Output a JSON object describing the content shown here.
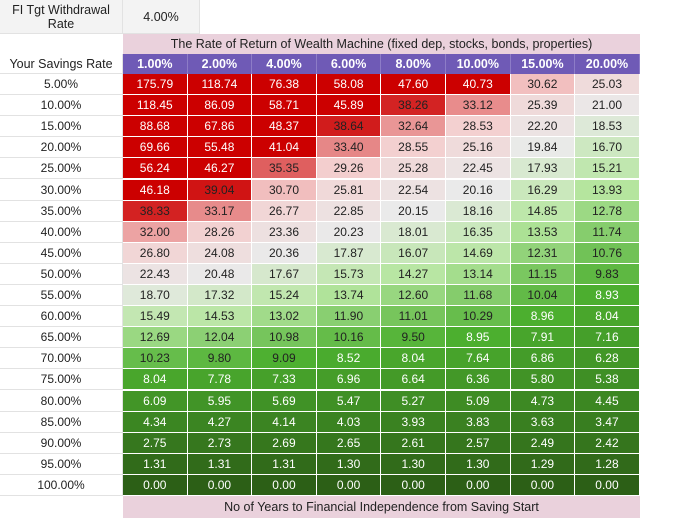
{
  "sheet": {
    "fi_label": "FI Tgt Withdrawal\nRate",
    "fi_value": "4.00%",
    "title": "The Rate of Return of Wealth Machine (fixed dep, stocks, bonds, properties)",
    "corner_label": "Your Savings Rate",
    "footer": "No of Years to Financial Independence from Saving Start",
    "columns": [
      "1.00%",
      "2.00%",
      "4.00%",
      "6.00%",
      "8.00%",
      "10.00%",
      "15.00%",
      "20.00%"
    ],
    "rows": [
      {
        "label": "5.00%",
        "values": [
          "175.79",
          "118.74",
          "76.38",
          "58.08",
          "47.60",
          "40.73",
          "30.62",
          "25.03"
        ]
      },
      {
        "label": "10.00%",
        "values": [
          "118.45",
          "86.09",
          "58.71",
          "45.89",
          "38.26",
          "33.12",
          "25.39",
          "21.00"
        ]
      },
      {
        "label": "15.00%",
        "values": [
          "88.68",
          "67.86",
          "48.37",
          "38.64",
          "32.64",
          "28.53",
          "22.20",
          "18.53"
        ]
      },
      {
        "label": "20.00%",
        "values": [
          "69.66",
          "55.48",
          "41.04",
          "33.40",
          "28.55",
          "25.16",
          "19.84",
          "16.70"
        ]
      },
      {
        "label": "25.00%",
        "values": [
          "56.24",
          "46.27",
          "35.35",
          "29.26",
          "25.28",
          "22.45",
          "17.93",
          "15.21"
        ]
      },
      {
        "label": "30.00%",
        "values": [
          "46.18",
          "39.04",
          "30.70",
          "25.81",
          "22.54",
          "20.16",
          "16.29",
          "13.93"
        ]
      },
      {
        "label": "35.00%",
        "values": [
          "38.33",
          "33.17",
          "26.77",
          "22.85",
          "20.15",
          "18.16",
          "14.85",
          "12.78"
        ]
      },
      {
        "label": "40.00%",
        "values": [
          "32.00",
          "28.26",
          "23.36",
          "20.23",
          "18.01",
          "16.35",
          "13.53",
          "11.74"
        ]
      },
      {
        "label": "45.00%",
        "values": [
          "26.80",
          "24.08",
          "20.36",
          "17.87",
          "16.07",
          "14.69",
          "12.31",
          "10.76"
        ]
      },
      {
        "label": "50.00%",
        "values": [
          "22.43",
          "20.48",
          "17.67",
          "15.73",
          "14.27",
          "13.14",
          "11.15",
          "9.83"
        ]
      },
      {
        "label": "55.00%",
        "values": [
          "18.70",
          "17.32",
          "15.24",
          "13.74",
          "12.60",
          "11.68",
          "10.04",
          "8.93"
        ]
      },
      {
        "label": "60.00%",
        "values": [
          "15.49",
          "14.53",
          "13.02",
          "11.90",
          "11.01",
          "10.29",
          "8.96",
          "8.04"
        ]
      },
      {
        "label": "65.00%",
        "values": [
          "12.69",
          "12.04",
          "10.98",
          "10.16",
          "9.50",
          "8.95",
          "7.91",
          "7.16"
        ]
      },
      {
        "label": "70.00%",
        "values": [
          "10.23",
          "9.80",
          "9.09",
          "8.52",
          "8.04",
          "7.64",
          "6.86",
          "6.28"
        ]
      },
      {
        "label": "75.00%",
        "values": [
          "8.04",
          "7.78",
          "7.33",
          "6.96",
          "6.64",
          "6.36",
          "5.80",
          "5.38"
        ]
      },
      {
        "label": "80.00%",
        "values": [
          "6.09",
          "5.95",
          "5.69",
          "5.47",
          "5.27",
          "5.09",
          "4.73",
          "4.45"
        ]
      },
      {
        "label": "85.00%",
        "values": [
          "4.34",
          "4.27",
          "4.14",
          "4.03",
          "3.93",
          "3.83",
          "3.63",
          "3.47"
        ]
      },
      {
        "label": "90.00%",
        "values": [
          "2.75",
          "2.73",
          "2.69",
          "2.65",
          "2.61",
          "2.57",
          "2.49",
          "2.42"
        ]
      },
      {
        "label": "95.00%",
        "values": [
          "1.31",
          "1.31",
          "1.31",
          "1.30",
          "1.30",
          "1.30",
          "1.29",
          "1.28"
        ]
      },
      {
        "label": "100.00%",
        "values": [
          "0.00",
          "0.00",
          "0.00",
          "0.00",
          "0.00",
          "0.00",
          "0.00",
          "0.00"
        ]
      }
    ]
  },
  "colors": {
    "header_bg": "#6f5ab6",
    "title_bg": "#ead1dc",
    "red_strong": "#cc0000",
    "red_light": "#f4cccc",
    "neutral": "#eaeaea",
    "green_light": "#b6e6a0",
    "green_mid": "#4caf2f",
    "green_dark": "#2c5f16"
  }
}
